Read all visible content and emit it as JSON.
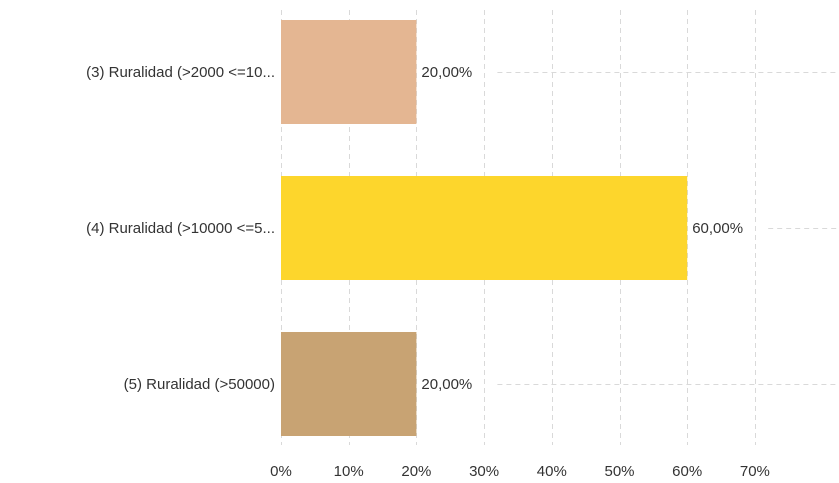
{
  "chart_data": {
    "type": "bar",
    "orientation": "horizontal",
    "categories": [
      "(3) Ruralidad (>2000 <=10...",
      "(4) Ruralidad (>10000 <=5...",
      "(5) Ruralidad (>50000)"
    ],
    "values": [
      20,
      60,
      20
    ],
    "data_labels": [
      "20,00%",
      "60,00%",
      "20,00%"
    ],
    "colors": [
      "#e4b692",
      "#fdd62c",
      "#c8a373"
    ],
    "xlim": [
      0,
      70
    ],
    "xticks": [
      0,
      10,
      20,
      30,
      40,
      50,
      60,
      70
    ],
    "xtick_labels": [
      "0%",
      "10%",
      "20%",
      "30%",
      "40%",
      "50%",
      "60%",
      "70%"
    ],
    "title": "",
    "xlabel": "",
    "ylabel": "",
    "grid": true,
    "legend": "none"
  }
}
